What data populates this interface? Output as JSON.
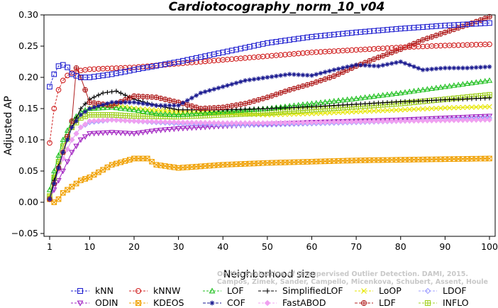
{
  "chart_data": {
    "type": "line",
    "title": "Cardiotocography_norm_10_v04",
    "xlabel": "Neighborhood size",
    "ylabel": "Adjusted AP",
    "xlim": [
      1,
      100
    ],
    "ylim": [
      -0.05,
      0.3
    ],
    "xticks": [
      1,
      10,
      20,
      30,
      40,
      50,
      60,
      70,
      80,
      90,
      100
    ],
    "yticks": [
      "−0.05",
      "0.00",
      "0.05",
      "0.10",
      "0.15",
      "0.20",
      "0.25",
      "0.30"
    ],
    "ytick_values": [
      -0.05,
      0.0,
      0.05,
      0.1,
      0.15,
      0.2,
      0.25,
      0.3
    ],
    "grid": false,
    "legend_position": "bottom",
    "watermark": [
      "Campos, Zimek, Sander, Campello, Micenkova, Schubert, Assent, Houle",
      "On the Evaluation of Unsupervised Outlier Detection. DAMI, 2015."
    ],
    "series": [
      {
        "name": "kNN",
        "color": "#2020d0",
        "marker": "square",
        "dashed": true,
        "points": [
          [
            1,
            0.185
          ],
          [
            2,
            0.205
          ],
          [
            3,
            0.218
          ],
          [
            4,
            0.22
          ],
          [
            5,
            0.216
          ],
          [
            6,
            0.205
          ],
          [
            8,
            0.2
          ],
          [
            10,
            0.2
          ],
          [
            15,
            0.205
          ],
          [
            20,
            0.212
          ],
          [
            30,
            0.225
          ],
          [
            40,
            0.24
          ],
          [
            50,
            0.255
          ],
          [
            60,
            0.265
          ],
          [
            70,
            0.272
          ],
          [
            80,
            0.278
          ],
          [
            90,
            0.283
          ],
          [
            100,
            0.287
          ]
        ]
      },
      {
        "name": "kNNW",
        "color": "#d02020",
        "marker": "circle",
        "dashed": true,
        "points": [
          [
            1,
            0.095
          ],
          [
            2,
            0.15
          ],
          [
            3,
            0.18
          ],
          [
            4,
            0.195
          ],
          [
            5,
            0.203
          ],
          [
            6,
            0.207
          ],
          [
            8,
            0.211
          ],
          [
            10,
            0.213
          ],
          [
            20,
            0.216
          ],
          [
            30,
            0.222
          ],
          [
            40,
            0.228
          ],
          [
            50,
            0.234
          ],
          [
            60,
            0.24
          ],
          [
            70,
            0.244
          ],
          [
            80,
            0.248
          ],
          [
            90,
            0.251
          ],
          [
            100,
            0.253
          ]
        ]
      },
      {
        "name": "LOF",
        "color": "#20c020",
        "marker": "triangle-up",
        "points": [
          [
            1,
            0.02
          ],
          [
            2,
            0.05
          ],
          [
            4,
            0.1
          ],
          [
            6,
            0.13
          ],
          [
            8,
            0.145
          ],
          [
            10,
            0.15
          ],
          [
            15,
            0.152
          ],
          [
            20,
            0.148
          ],
          [
            25,
            0.142
          ],
          [
            30,
            0.14
          ],
          [
            40,
            0.145
          ],
          [
            50,
            0.15
          ],
          [
            60,
            0.158
          ],
          [
            70,
            0.166
          ],
          [
            80,
            0.175
          ],
          [
            90,
            0.185
          ],
          [
            100,
            0.195
          ]
        ]
      },
      {
        "name": "SimplifiedLOF",
        "color": "#000000",
        "marker": "plus",
        "points": [
          [
            1,
            0.005
          ],
          [
            2,
            0.035
          ],
          [
            4,
            0.08
          ],
          [
            6,
            0.12
          ],
          [
            8,
            0.15
          ],
          [
            10,
            0.165
          ],
          [
            13,
            0.175
          ],
          [
            16,
            0.178
          ],
          [
            20,
            0.165
          ],
          [
            25,
            0.155
          ],
          [
            30,
            0.148
          ],
          [
            40,
            0.148
          ],
          [
            50,
            0.15
          ],
          [
            60,
            0.153
          ],
          [
            70,
            0.157
          ],
          [
            80,
            0.161
          ],
          [
            90,
            0.164
          ],
          [
            100,
            0.167
          ]
        ]
      },
      {
        "name": "LoOP",
        "color": "#e6e600",
        "marker": "x",
        "points": [
          [
            1,
            0.01
          ],
          [
            2,
            0.04
          ],
          [
            4,
            0.08
          ],
          [
            6,
            0.12
          ],
          [
            8,
            0.14
          ],
          [
            10,
            0.15
          ],
          [
            15,
            0.155
          ],
          [
            20,
            0.15
          ],
          [
            30,
            0.145
          ],
          [
            40,
            0.142
          ],
          [
            50,
            0.14
          ],
          [
            60,
            0.142
          ],
          [
            70,
            0.145
          ],
          [
            80,
            0.148
          ],
          [
            90,
            0.151
          ],
          [
            100,
            0.153
          ]
        ]
      },
      {
        "name": "LDOF",
        "color": "#a0a0ff",
        "marker": "diamond",
        "points": [
          [
            1,
            0.005
          ],
          [
            2,
            0.03
          ],
          [
            4,
            0.07
          ],
          [
            6,
            0.1
          ],
          [
            8,
            0.12
          ],
          [
            10,
            0.128
          ],
          [
            15,
            0.132
          ],
          [
            20,
            0.13
          ],
          [
            30,
            0.126
          ],
          [
            40,
            0.124
          ],
          [
            50,
            0.124
          ],
          [
            60,
            0.126
          ],
          [
            70,
            0.128
          ],
          [
            80,
            0.13
          ],
          [
            90,
            0.132
          ],
          [
            100,
            0.135
          ]
        ]
      },
      {
        "name": "ODIN",
        "color": "#a020c0",
        "marker": "triangle-down",
        "points": [
          [
            1,
            0.005
          ],
          [
            2,
            0.02
          ],
          [
            4,
            0.05
          ],
          [
            6,
            0.08
          ],
          [
            8,
            0.1
          ],
          [
            10,
            0.11
          ],
          [
            15,
            0.112
          ],
          [
            20,
            0.11
          ],
          [
            25,
            0.115
          ],
          [
            30,
            0.118
          ],
          [
            40,
            0.122
          ],
          [
            50,
            0.125
          ],
          [
            60,
            0.128
          ],
          [
            70,
            0.13
          ],
          [
            80,
            0.132
          ],
          [
            90,
            0.135
          ],
          [
            100,
            0.138
          ]
        ]
      },
      {
        "name": "KDEOS",
        "color": "#f0a000",
        "marker": "square-x",
        "points": [
          [
            1,
            0.005
          ],
          [
            2,
            0.0
          ],
          [
            3,
            0.005
          ],
          [
            4,
            0.015
          ],
          [
            6,
            0.025
          ],
          [
            8,
            0.035
          ],
          [
            10,
            0.04
          ],
          [
            15,
            0.06
          ],
          [
            20,
            0.07
          ],
          [
            23,
            0.07
          ],
          [
            25,
            0.06
          ],
          [
            30,
            0.055
          ],
          [
            40,
            0.06
          ],
          [
            50,
            0.063
          ],
          [
            60,
            0.065
          ],
          [
            70,
            0.067
          ],
          [
            80,
            0.068
          ],
          [
            90,
            0.069
          ],
          [
            100,
            0.07
          ]
        ]
      },
      {
        "name": "COF",
        "color": "#1a1a90",
        "marker": "star",
        "points": [
          [
            1,
            0.005
          ],
          [
            2,
            0.03
          ],
          [
            4,
            0.08
          ],
          [
            6,
            0.12
          ],
          [
            8,
            0.14
          ],
          [
            10,
            0.15
          ],
          [
            15,
            0.16
          ],
          [
            20,
            0.16
          ],
          [
            25,
            0.155
          ],
          [
            30,
            0.155
          ],
          [
            35,
            0.175
          ],
          [
            40,
            0.185
          ],
          [
            45,
            0.195
          ],
          [
            50,
            0.2
          ],
          [
            55,
            0.205
          ],
          [
            60,
            0.203
          ],
          [
            65,
            0.212
          ],
          [
            70,
            0.22
          ],
          [
            75,
            0.218
          ],
          [
            80,
            0.225
          ],
          [
            85,
            0.212
          ],
          [
            90,
            0.215
          ],
          [
            95,
            0.215
          ],
          [
            100,
            0.217
          ]
        ]
      },
      {
        "name": "FastABOD",
        "color": "#f0a0f0",
        "marker": "diamond-filled",
        "points": [
          [
            1,
            0.005
          ],
          [
            2,
            0.03
          ],
          [
            4,
            0.07
          ],
          [
            6,
            0.1
          ],
          [
            8,
            0.12
          ],
          [
            10,
            0.13
          ],
          [
            15,
            0.132
          ],
          [
            20,
            0.13
          ],
          [
            30,
            0.128
          ],
          [
            40,
            0.127
          ],
          [
            50,
            0.127
          ],
          [
            60,
            0.128
          ],
          [
            70,
            0.129
          ],
          [
            80,
            0.13
          ],
          [
            90,
            0.131
          ],
          [
            100,
            0.132
          ]
        ]
      },
      {
        "name": "LDF",
        "color": "#b02020",
        "marker": "circle-plus",
        "points": [
          [
            1,
            0.005
          ],
          [
            2,
            0.03
          ],
          [
            4,
            0.08
          ],
          [
            6,
            0.13
          ],
          [
            7,
            0.215
          ],
          [
            8,
            0.2
          ],
          [
            10,
            0.16
          ],
          [
            15,
            0.155
          ],
          [
            20,
            0.17
          ],
          [
            25,
            0.168
          ],
          [
            30,
            0.16
          ],
          [
            35,
            0.15
          ],
          [
            40,
            0.152
          ],
          [
            45,
            0.158
          ],
          [
            50,
            0.168
          ],
          [
            55,
            0.18
          ],
          [
            60,
            0.19
          ],
          [
            65,
            0.202
          ],
          [
            70,
            0.218
          ],
          [
            75,
            0.232
          ],
          [
            80,
            0.245
          ],
          [
            85,
            0.26
          ],
          [
            90,
            0.272
          ],
          [
            95,
            0.284
          ],
          [
            100,
            0.297
          ]
        ]
      },
      {
        "name": "INFLO",
        "color": "#a0d020",
        "marker": "square-cross",
        "points": [
          [
            1,
            0.01
          ],
          [
            2,
            0.04
          ],
          [
            4,
            0.09
          ],
          [
            6,
            0.12
          ],
          [
            8,
            0.135
          ],
          [
            10,
            0.14
          ],
          [
            15,
            0.14
          ],
          [
            20,
            0.138
          ],
          [
            30,
            0.137
          ],
          [
            40,
            0.14
          ],
          [
            50,
            0.143
          ],
          [
            60,
            0.148
          ],
          [
            70,
            0.153
          ],
          [
            80,
            0.158
          ],
          [
            90,
            0.165
          ],
          [
            100,
            0.172
          ]
        ]
      }
    ]
  }
}
